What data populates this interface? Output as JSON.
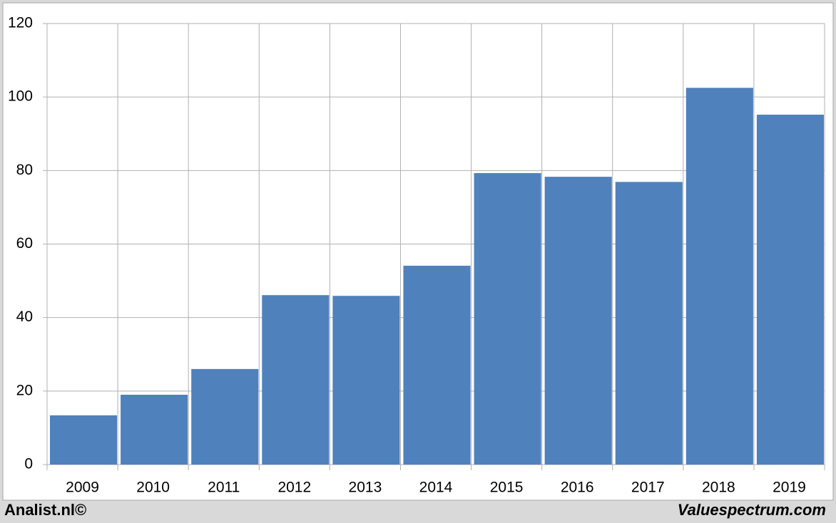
{
  "chart_data": {
    "type": "bar",
    "categories": [
      "2009",
      "2010",
      "2011",
      "2012",
      "2013",
      "2014",
      "2015",
      "2016",
      "2017",
      "2018",
      "2019"
    ],
    "values": [
      13.4,
      19.0,
      26.0,
      46.1,
      45.9,
      54.1,
      79.3,
      78.3,
      76.9,
      102.5,
      95.2
    ],
    "color": "#4f81bd",
    "ylim": [
      0,
      120
    ],
    "yticks": [
      0,
      20,
      40,
      60,
      80,
      100,
      120
    ],
    "grid": true
  },
  "footer": {
    "left": "Analist.nl©",
    "right": "Valuespectrum.com"
  }
}
